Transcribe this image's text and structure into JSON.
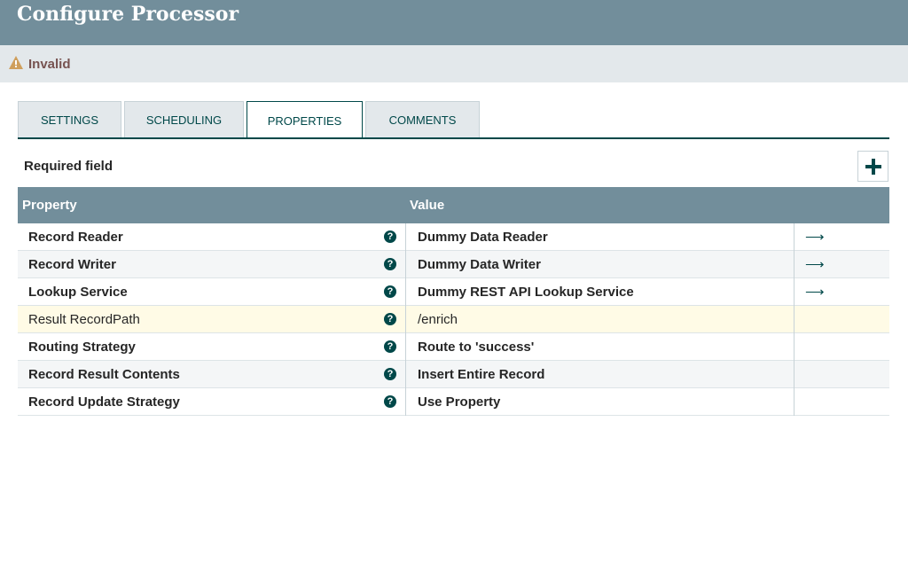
{
  "header": {
    "title": "Configure Processor"
  },
  "status": {
    "label": "Invalid"
  },
  "tabs": [
    "SETTINGS",
    "SCHEDULING",
    "PROPERTIES",
    "COMMENTS"
  ],
  "active_tab": 2,
  "required_label": "Required field",
  "table": {
    "columns": [
      "Property",
      "Value"
    ],
    "rows": [
      [
        "Record Reader",
        "Dummy Data Reader"
      ],
      [
        "Record Writer",
        "Dummy Data Writer"
      ],
      [
        "Lookup Service",
        "Dummy REST API Lookup Service"
      ],
      [
        "Result RecordPath",
        "/enrich"
      ],
      [
        "Routing Strategy",
        "Route to 'success'"
      ],
      [
        "Record Result Contents",
        "Insert Entire Record"
      ],
      [
        "Record Update Strategy",
        "Use Property"
      ]
    ]
  }
}
